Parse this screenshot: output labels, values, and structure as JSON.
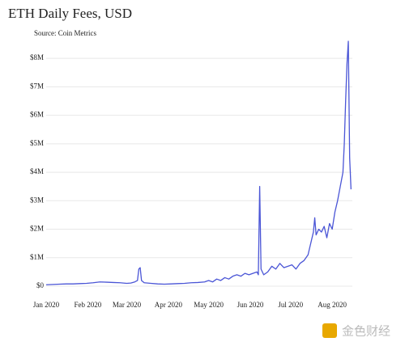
{
  "chart_data": {
    "type": "line",
    "title": "ETH Daily Fees, USD",
    "subtitle": "Source: Coin Metrics",
    "watermark": "金色财经",
    "x": [
      0,
      5,
      10,
      15,
      20,
      25,
      30,
      35,
      40,
      45,
      50,
      55,
      60,
      63,
      66,
      68,
      69,
      70,
      71,
      73,
      78,
      83,
      88,
      93,
      98,
      103,
      108,
      113,
      118,
      121,
      124,
      127,
      130,
      133,
      136,
      139,
      142,
      145,
      148,
      151,
      154,
      157,
      158,
      159,
      160,
      162,
      165,
      168,
      171,
      174,
      177,
      180,
      183,
      186,
      189,
      192,
      195,
      197,
      199,
      200,
      201,
      203,
      205,
      207,
      209,
      211,
      213,
      215,
      217,
      219,
      221,
      222,
      223,
      224,
      225,
      226,
      227
    ],
    "series": [
      {
        "name": "Fees",
        "color": "#4a55d6",
        "values": [
          50000,
          60000,
          70000,
          80000,
          80000,
          90000,
          100000,
          120000,
          150000,
          140000,
          130000,
          120000,
          100000,
          110000,
          150000,
          200000,
          600000,
          650000,
          200000,
          120000,
          100000,
          80000,
          70000,
          80000,
          90000,
          100000,
          120000,
          130000,
          150000,
          200000,
          150000,
          250000,
          200000,
          300000,
          250000,
          350000,
          400000,
          350000,
          450000,
          400000,
          450000,
          500000,
          400000,
          3500000,
          600000,
          400000,
          500000,
          700000,
          600000,
          800000,
          650000,
          700000,
          750000,
          600000,
          800000,
          900000,
          1100000,
          1500000,
          1900000,
          2400000,
          1800000,
          2000000,
          1900000,
          2100000,
          1700000,
          2200000,
          2000000,
          2600000,
          3000000,
          3500000,
          4000000,
          5000000,
          6500000,
          7800000,
          8600000,
          4500000,
          3400000
        ]
      }
    ],
    "xlim": [
      0,
      228
    ],
    "xticks": [
      {
        "value": 0,
        "label": "Jan 2020"
      },
      {
        "value": 31,
        "label": "Feb 2020"
      },
      {
        "value": 60,
        "label": "Mar 2020"
      },
      {
        "value": 91,
        "label": "Apr 2020"
      },
      {
        "value": 121,
        "label": "May 2020"
      },
      {
        "value": 152,
        "label": "Jun 2020"
      },
      {
        "value": 182,
        "label": "Jul 2020"
      },
      {
        "value": 213,
        "label": "Aug 2020"
      }
    ],
    "ylim": [
      0,
      8600000
    ],
    "yticks": [
      {
        "value": 0,
        "label": "$0"
      },
      {
        "value": 1000000,
        "label": "$1M"
      },
      {
        "value": 2000000,
        "label": "$2M"
      },
      {
        "value": 3000000,
        "label": "$3M"
      },
      {
        "value": 4000000,
        "label": "$4M"
      },
      {
        "value": 5000000,
        "label": "$5M"
      },
      {
        "value": 6000000,
        "label": "$6M"
      },
      {
        "value": 7000000,
        "label": "$7M"
      },
      {
        "value": 8000000,
        "label": "$8M"
      }
    ],
    "grid": true
  }
}
